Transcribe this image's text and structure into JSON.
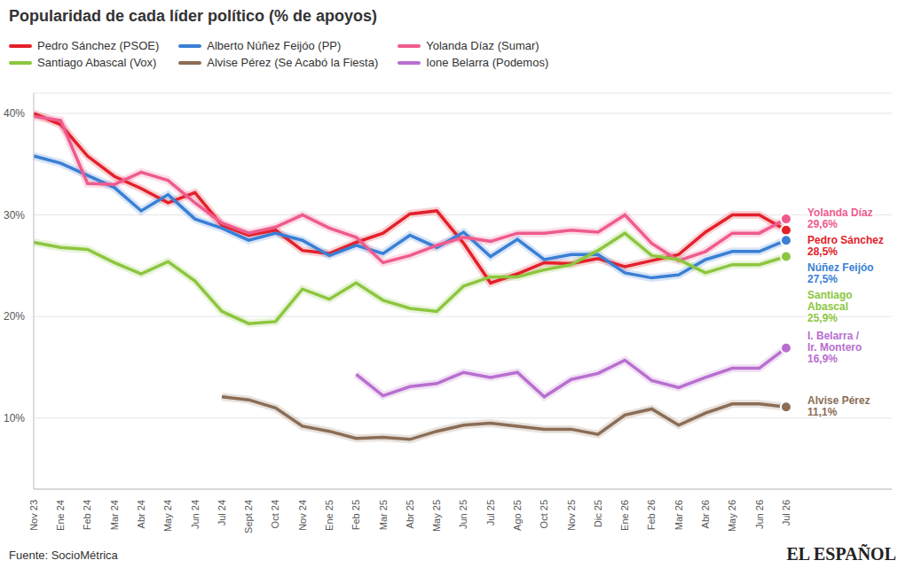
{
  "chart_data": {
    "type": "line",
    "title": "Popularidad de cada líder político (% de apoyos)",
    "categories": [
      "Nov 23",
      "Ene 24",
      "Feb 24",
      "Mar 24",
      "Abr 24",
      "May 24",
      "Jun 24",
      "Jul 24",
      "Sept 24",
      "Oct 24",
      "Nov 24",
      "Ene 25",
      "Feb 25",
      "Mar 25",
      "Abr 25",
      "May 25",
      "Jun 25",
      "Jul 25",
      "Ago 25",
      "Oct 25",
      "Nov 25",
      "Dic 25",
      "Ene 26",
      "Feb 26",
      "Mar 26",
      "Abr 26",
      "May 26",
      "Jun 26",
      "Jul 26"
    ],
    "series": [
      {
        "name": "Pedro Sánchez (PSOE)",
        "label": "Pedro Sánchez",
        "color": "#e3212b",
        "values": [
          40,
          38.9,
          35.8,
          33.8,
          32.6,
          31.2,
          32.2,
          29.0,
          28.0,
          28.5,
          26.5,
          26.2,
          27.3,
          28.2,
          30.1,
          30.4,
          27.2,
          23.3,
          24.2,
          25.3,
          25.2,
          25.7,
          24.9,
          25.5,
          26.1,
          28.3,
          30.0,
          30.0,
          28.5
        ],
        "value_labels": [
          null,
          null,
          null,
          null,
          null,
          null,
          null,
          null,
          null,
          null,
          null,
          null,
          null,
          null,
          null,
          null,
          null,
          null,
          null,
          null,
          null,
          null,
          null,
          null,
          null,
          null,
          null,
          null,
          "28,5%"
        ]
      },
      {
        "name": "Alberto Núñez Feijóo (PP)",
        "label": "Núñez Feijóo",
        "color": "#3a7fd5",
        "values": [
          35.8,
          35.1,
          33.9,
          32.7,
          30.4,
          32.0,
          29.6,
          28.7,
          27.5,
          28.2,
          27.5,
          26.0,
          27.0,
          26.2,
          28.0,
          26.8,
          28.3,
          25.9,
          27.6,
          25.6,
          26.1,
          26.1,
          24.3,
          23.8,
          24.1,
          25.6,
          26.4,
          26.4,
          27.5
        ],
        "value_labels": [
          null,
          null,
          null,
          null,
          null,
          null,
          null,
          null,
          null,
          null,
          null,
          null,
          null,
          null,
          null,
          null,
          null,
          null,
          null,
          null,
          null,
          null,
          null,
          null,
          null,
          null,
          null,
          null,
          "27,5%"
        ]
      },
      {
        "name": "Yolanda Díaz (Sumar)",
        "label": "Yolanda Díaz",
        "color": "#ef5b8d",
        "values": [
          39.7,
          39.3,
          33.1,
          33.0,
          34.2,
          33.4,
          31.2,
          29.2,
          28.2,
          28.8,
          30.0,
          28.7,
          27.8,
          25.3,
          26.0,
          27.0,
          27.8,
          27.4,
          28.2,
          28.2,
          28.5,
          28.3,
          30.0,
          27.2,
          25.5,
          26.4,
          28.2,
          28.2,
          29.6
        ],
        "value_labels": [
          null,
          null,
          null,
          null,
          null,
          null,
          null,
          null,
          null,
          null,
          null,
          null,
          null,
          null,
          null,
          null,
          null,
          null,
          null,
          null,
          null,
          null,
          null,
          null,
          null,
          null,
          null,
          null,
          "29,6%"
        ]
      },
      {
        "name": "Santiago Abascal (Vox)",
        "label": "Santiago Abascal",
        "color": "#8cc63f",
        "values": [
          27.3,
          26.8,
          26.6,
          25.3,
          24.2,
          25.4,
          23.5,
          20.5,
          19.3,
          19.5,
          22.7,
          21.7,
          23.3,
          21.6,
          20.8,
          20.5,
          23.0,
          23.9,
          23.9,
          24.6,
          25.1,
          26.5,
          28.2,
          26.0,
          25.6,
          24.3,
          25.1,
          25.1,
          25.9
        ],
        "value_labels": [
          null,
          null,
          null,
          null,
          null,
          null,
          null,
          null,
          null,
          null,
          null,
          null,
          null,
          null,
          null,
          null,
          null,
          null,
          null,
          null,
          null,
          null,
          null,
          null,
          null,
          null,
          null,
          null,
          "25,9%"
        ]
      },
      {
        "name": "Alvise Pérez (Se Acabó la Fiesta)",
        "label": "Alvise Pérez",
        "color": "#8b6d55",
        "values": [
          null,
          null,
          null,
          null,
          null,
          null,
          null,
          12.1,
          11.8,
          11.0,
          9.2,
          8.7,
          8.0,
          8.1,
          7.9,
          8.7,
          9.3,
          9.5,
          9.2,
          8.9,
          8.9,
          8.4,
          10.3,
          10.9,
          9.3,
          10.5,
          11.4,
          11.4,
          11.1
        ],
        "value_labels": [
          null,
          null,
          null,
          null,
          null,
          null,
          null,
          null,
          null,
          null,
          null,
          null,
          null,
          null,
          null,
          null,
          null,
          null,
          null,
          null,
          null,
          null,
          null,
          null,
          null,
          null,
          null,
          null,
          "11,1%"
        ]
      },
      {
        "name": "Ione Belarra (Podemos)",
        "label": "I. Belarra / Ir. Montero",
        "color": "#b86fcf",
        "values": [
          null,
          null,
          null,
          null,
          null,
          null,
          null,
          null,
          null,
          null,
          null,
          null,
          14.3,
          12.2,
          13.1,
          13.4,
          14.5,
          14.0,
          14.5,
          12.1,
          13.8,
          14.4,
          15.7,
          13.7,
          13.0,
          14.0,
          14.9,
          14.9,
          16.9
        ],
        "value_labels": [
          null,
          null,
          null,
          null,
          null,
          null,
          null,
          null,
          null,
          null,
          null,
          null,
          null,
          null,
          null,
          null,
          null,
          null,
          null,
          null,
          null,
          null,
          null,
          null,
          null,
          null,
          null,
          null,
          "16,9%"
        ]
      }
    ],
    "ylim": [
      3,
      42
    ],
    "yticks": [
      {
        "value": 10,
        "label": "10%"
      },
      {
        "value": 20,
        "label": "20%"
      },
      {
        "value": 30,
        "label": "30%"
      },
      {
        "value": 40,
        "label": "40%"
      }
    ],
    "grid": true,
    "legend": "top",
    "source": "Fuente: SocioMétrica",
    "credit": "EL ESPAÑOL"
  }
}
